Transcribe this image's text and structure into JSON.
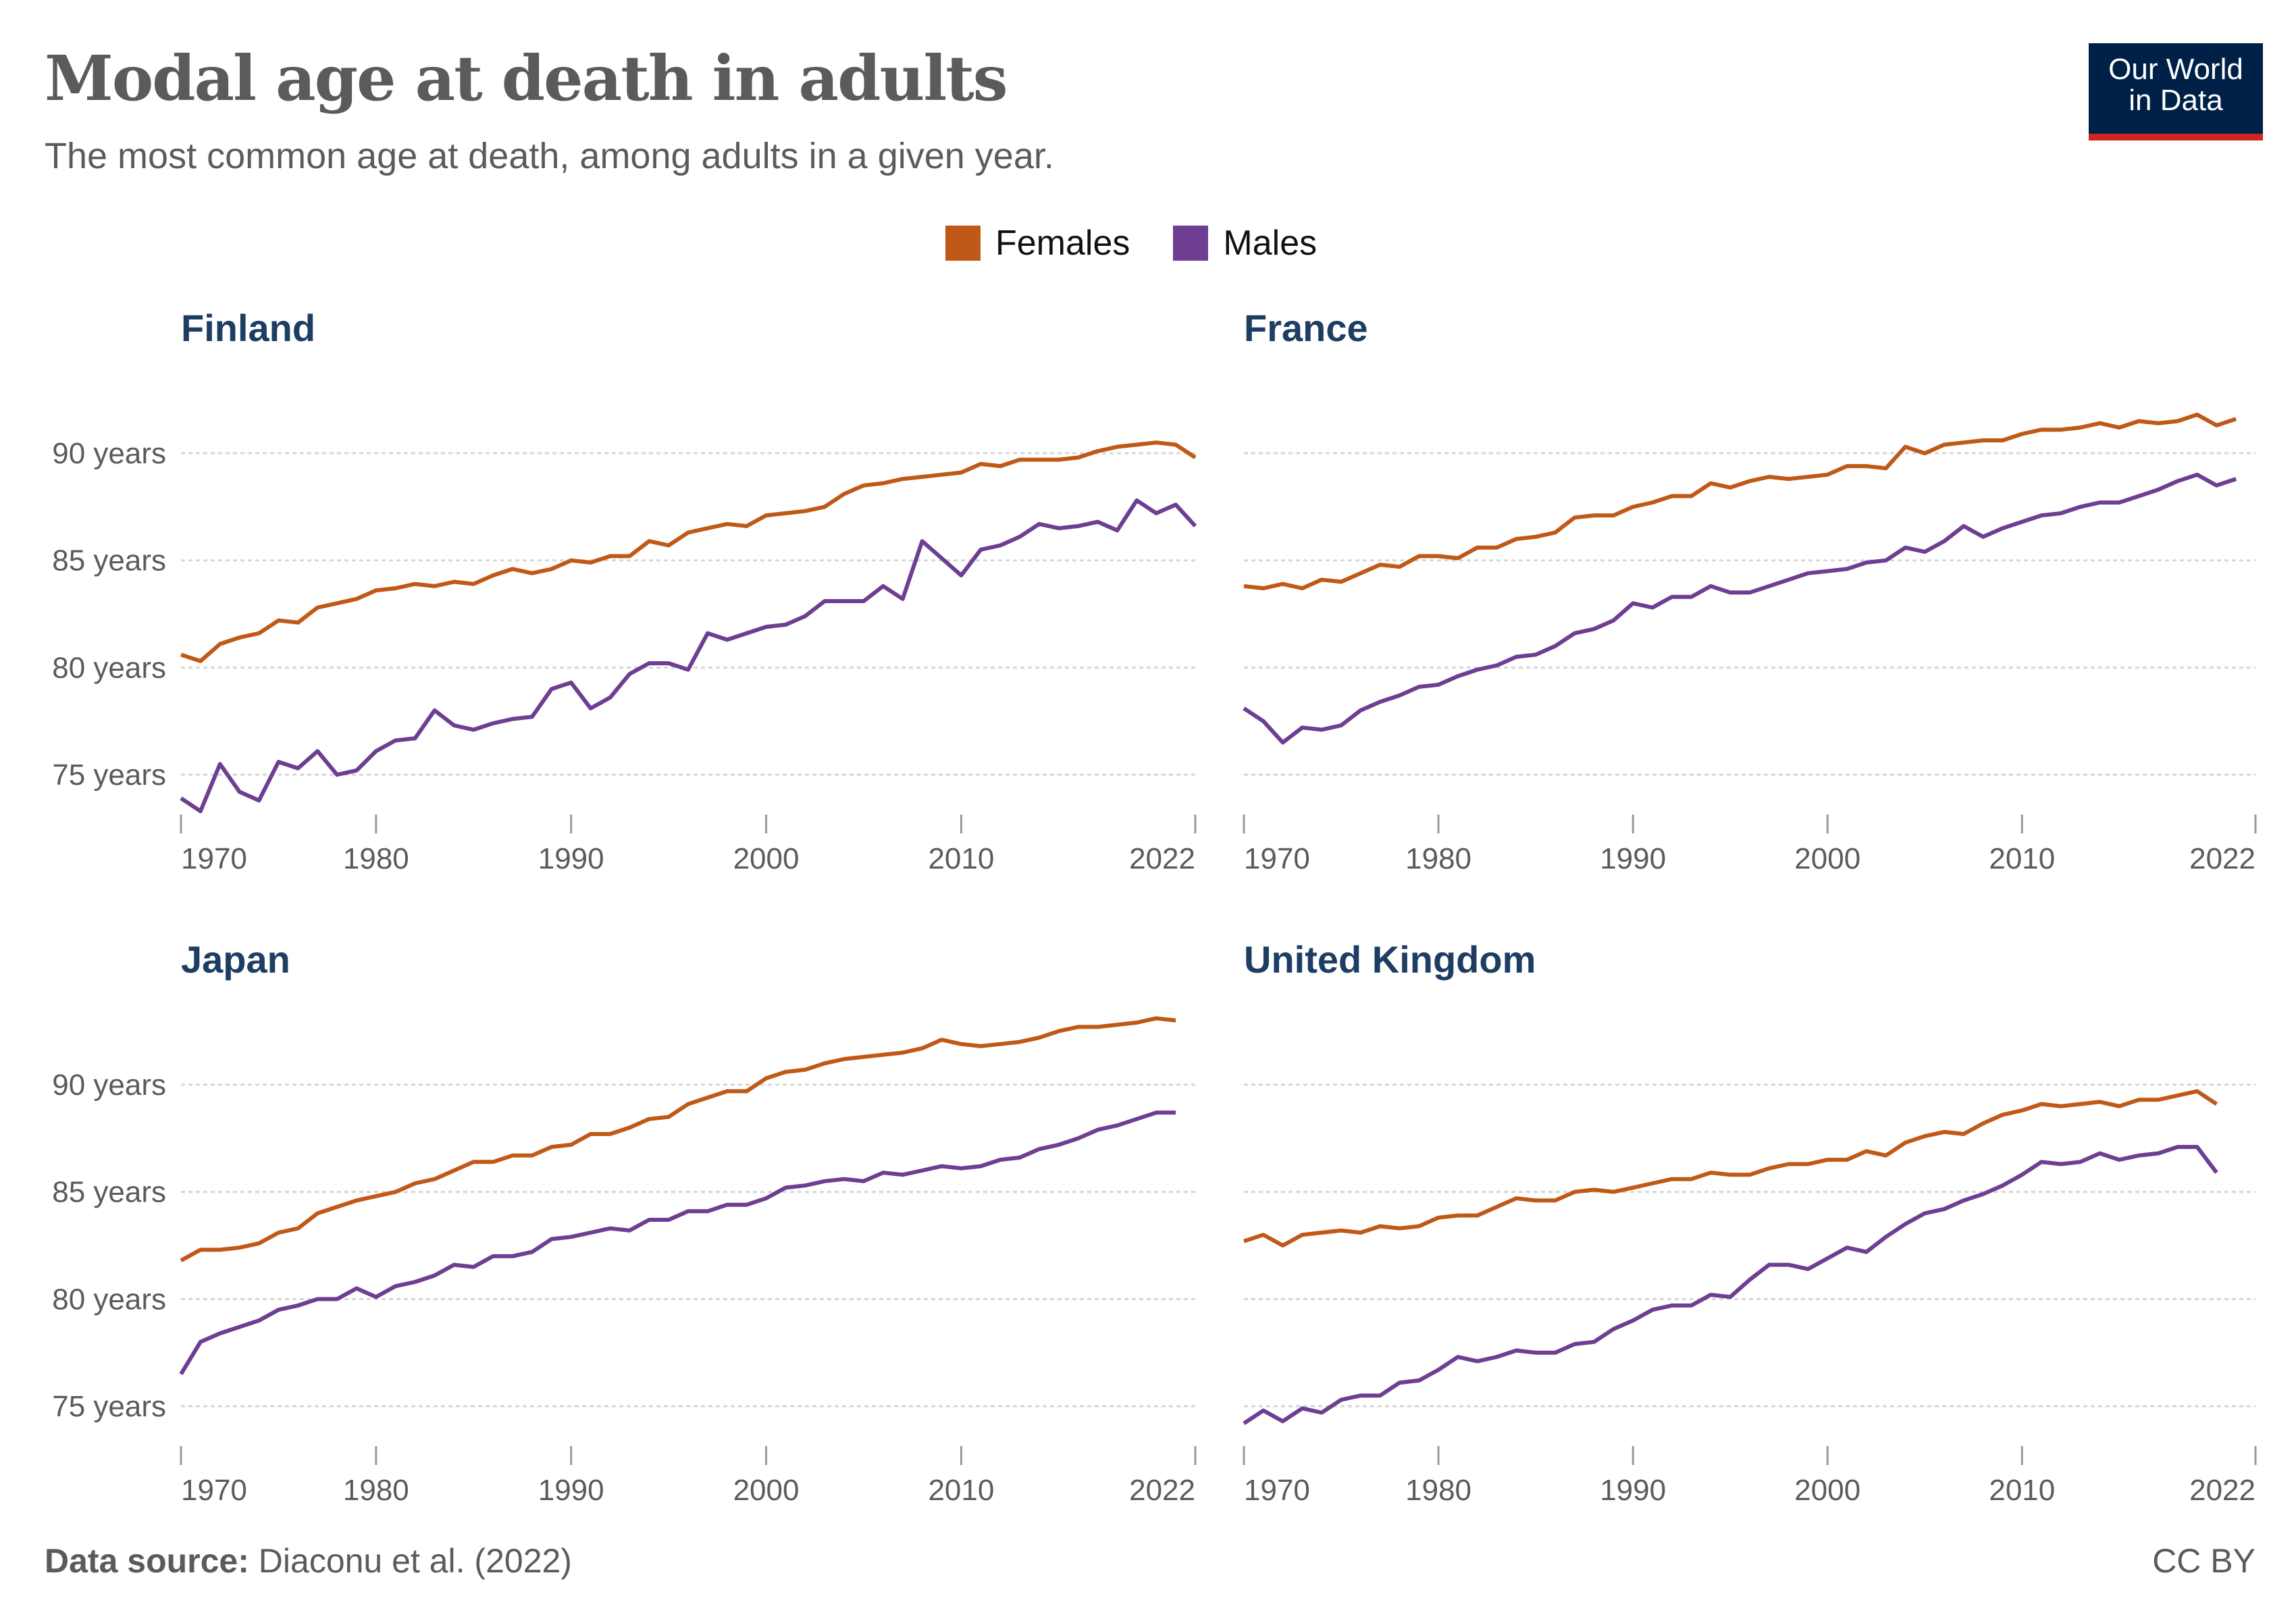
{
  "header": {
    "title": "Modal age at death in adults",
    "subtitle": "The most common age at death, among adults in a given year.",
    "logo_text_line1": "Our World",
    "logo_text_line2": "in Data"
  },
  "legend": [
    {
      "label": "Females",
      "color": "#C05917"
    },
    {
      "label": "Males",
      "color": "#6D3E91"
    }
  ],
  "footer": {
    "source_label": "Data source:",
    "source_text": "Diaconu et al. (2022)",
    "license": "CC BY"
  },
  "chart_data": [
    {
      "type": "line",
      "title": "Finland",
      "x_ticks": [
        "1970",
        "1980",
        "1990",
        "2000",
        "2010",
        "2022"
      ],
      "y_ticks": [
        "75 years",
        "80 years",
        "85 years",
        "90 years"
      ],
      "xlim": [
        1970,
        2022
      ],
      "ylim": [
        72.7,
        93.5
      ],
      "grid": "horizontal-dashed",
      "x_start": 1970,
      "series": [
        {
          "name": "Females",
          "color": "#C05917",
          "values": [
            80.6,
            80.3,
            81.1,
            81.4,
            81.6,
            82.2,
            82.1,
            82.8,
            83.0,
            83.2,
            83.6,
            83.7,
            83.9,
            83.8,
            84.0,
            83.9,
            84.3,
            84.6,
            84.4,
            84.6,
            85.0,
            84.9,
            85.2,
            85.2,
            85.9,
            85.7,
            86.3,
            86.5,
            86.7,
            86.6,
            87.1,
            87.2,
            87.3,
            87.5,
            88.1,
            88.5,
            88.6,
            88.8,
            88.9,
            89.0,
            89.1,
            89.5,
            89.4,
            89.7,
            89.7,
            89.7,
            89.8,
            90.1,
            90.3,
            90.4,
            90.5,
            90.4,
            89.8
          ]
        },
        {
          "name": "Males",
          "color": "#6D3E91",
          "values": [
            73.9,
            73.3,
            75.5,
            74.2,
            73.8,
            75.6,
            75.3,
            76.1,
            75.0,
            75.2,
            76.1,
            76.6,
            76.7,
            78.0,
            77.3,
            77.1,
            77.4,
            77.6,
            77.7,
            79.0,
            79.3,
            78.1,
            78.6,
            79.7,
            80.2,
            80.2,
            79.9,
            81.6,
            81.3,
            81.6,
            81.9,
            82.0,
            82.4,
            83.1,
            83.1,
            83.1,
            83.8,
            83.2,
            85.9,
            85.1,
            84.3,
            85.5,
            85.7,
            86.1,
            86.7,
            86.5,
            86.6,
            86.8,
            86.4,
            87.8,
            87.2,
            87.6,
            86.6
          ]
        }
      ]
    },
    {
      "type": "line",
      "title": "France",
      "x_ticks": [
        "1970",
        "1980",
        "1990",
        "2000",
        "2010",
        "2022"
      ],
      "y_ticks": [
        "75 years",
        "80 years",
        "85 years",
        "90 years"
      ],
      "xlim": [
        1970,
        2022
      ],
      "ylim": [
        72.7,
        93.5
      ],
      "grid": "horizontal-dashed",
      "x_start": 1970,
      "series": [
        {
          "name": "Females",
          "color": "#C05917",
          "values": [
            83.8,
            83.7,
            83.9,
            83.7,
            84.1,
            84.0,
            84.4,
            84.8,
            84.7,
            85.2,
            85.2,
            85.1,
            85.6,
            85.6,
            86.0,
            86.1,
            86.3,
            87.0,
            87.1,
            87.1,
            87.5,
            87.7,
            88.0,
            88.0,
            88.6,
            88.4,
            88.7,
            88.9,
            88.8,
            88.9,
            89.0,
            89.4,
            89.4,
            89.3,
            90.3,
            90.0,
            90.4,
            90.5,
            90.6,
            90.6,
            90.9,
            91.1,
            91.1,
            91.2,
            91.4,
            91.2,
            91.5,
            91.4,
            91.5,
            91.8,
            91.3,
            91.6
          ]
        },
        {
          "name": "Males",
          "color": "#6D3E91",
          "values": [
            78.1,
            77.5,
            76.5,
            77.2,
            77.1,
            77.3,
            78.0,
            78.4,
            78.7,
            79.1,
            79.2,
            79.6,
            79.9,
            80.1,
            80.5,
            80.6,
            81.0,
            81.6,
            81.8,
            82.2,
            83.0,
            82.8,
            83.3,
            83.3,
            83.8,
            83.5,
            83.5,
            83.8,
            84.1,
            84.4,
            84.5,
            84.6,
            84.9,
            85.0,
            85.6,
            85.4,
            85.9,
            86.6,
            86.1,
            86.5,
            86.8,
            87.1,
            87.2,
            87.5,
            87.7,
            87.7,
            88.0,
            88.3,
            88.7,
            89.0,
            88.5,
            88.8
          ]
        }
      ]
    },
    {
      "type": "line",
      "title": "Japan",
      "x_ticks": [
        "1970",
        "1980",
        "1990",
        "2000",
        "2010",
        "2022"
      ],
      "y_ticks": [
        "75 years",
        "80 years",
        "85 years",
        "90 years"
      ],
      "xlim": [
        1970,
        2022
      ],
      "ylim": [
        72.7,
        93.5
      ],
      "grid": "horizontal-dashed",
      "x_start": 1970,
      "series": [
        {
          "name": "Females",
          "color": "#C05917",
          "values": [
            81.8,
            82.3,
            82.3,
            82.4,
            82.6,
            83.1,
            83.3,
            84.0,
            84.3,
            84.6,
            84.8,
            85.0,
            85.4,
            85.6,
            86.0,
            86.4,
            86.4,
            86.7,
            86.7,
            87.1,
            87.2,
            87.7,
            87.7,
            88.0,
            88.4,
            88.5,
            89.1,
            89.4,
            89.7,
            89.7,
            90.3,
            90.6,
            90.7,
            91.0,
            91.2,
            91.3,
            91.4,
            91.5,
            91.7,
            92.1,
            91.9,
            91.8,
            91.9,
            92.0,
            92.2,
            92.5,
            92.7,
            92.7,
            92.8,
            92.9,
            93.1,
            93.0
          ]
        },
        {
          "name": "Males",
          "color": "#6D3E91",
          "values": [
            76.5,
            78.0,
            78.4,
            78.7,
            79.0,
            79.5,
            79.7,
            80.0,
            80.0,
            80.5,
            80.1,
            80.6,
            80.8,
            81.1,
            81.6,
            81.5,
            82.0,
            82.0,
            82.2,
            82.8,
            82.9,
            83.1,
            83.3,
            83.2,
            83.7,
            83.7,
            84.1,
            84.1,
            84.4,
            84.4,
            84.7,
            85.2,
            85.3,
            85.5,
            85.6,
            85.5,
            85.9,
            85.8,
            86.0,
            86.2,
            86.1,
            86.2,
            86.5,
            86.6,
            87.0,
            87.2,
            87.5,
            87.9,
            88.1,
            88.4,
            88.7,
            88.7
          ]
        }
      ]
    },
    {
      "type": "line",
      "title": "United Kingdom",
      "x_ticks": [
        "1970",
        "1980",
        "1990",
        "2000",
        "2010",
        "2022"
      ],
      "y_ticks": [
        "75 years",
        "80 years",
        "85 years",
        "90 years"
      ],
      "xlim": [
        1970,
        2022
      ],
      "ylim": [
        72.7,
        93.5
      ],
      "grid": "horizontal-dashed",
      "x_start": 1970,
      "series": [
        {
          "name": "Females",
          "color": "#C05917",
          "values": [
            82.7,
            83.0,
            82.5,
            83.0,
            83.1,
            83.2,
            83.1,
            83.4,
            83.3,
            83.4,
            83.8,
            83.9,
            83.9,
            84.3,
            84.7,
            84.6,
            84.6,
            85.0,
            85.1,
            85.0,
            85.2,
            85.4,
            85.6,
            85.6,
            85.9,
            85.8,
            85.8,
            86.1,
            86.3,
            86.3,
            86.5,
            86.5,
            86.9,
            86.7,
            87.3,
            87.6,
            87.8,
            87.7,
            88.2,
            88.6,
            88.8,
            89.1,
            89.0,
            89.1,
            89.2,
            89.0,
            89.3,
            89.3,
            89.5,
            89.7,
            89.1
          ]
        },
        {
          "name": "Males",
          "color": "#6D3E91",
          "values": [
            74.2,
            74.8,
            74.3,
            74.9,
            74.7,
            75.3,
            75.5,
            75.5,
            76.1,
            76.2,
            76.7,
            77.3,
            77.1,
            77.3,
            77.6,
            77.5,
            77.5,
            77.9,
            78.0,
            78.6,
            79.0,
            79.5,
            79.7,
            79.7,
            80.2,
            80.1,
            80.9,
            81.6,
            81.6,
            81.4,
            81.9,
            82.4,
            82.2,
            82.9,
            83.5,
            84.0,
            84.2,
            84.6,
            84.9,
            85.3,
            85.8,
            86.4,
            86.3,
            86.4,
            86.8,
            86.5,
            86.7,
            86.8,
            87.1,
            87.1,
            85.9
          ]
        }
      ]
    }
  ]
}
